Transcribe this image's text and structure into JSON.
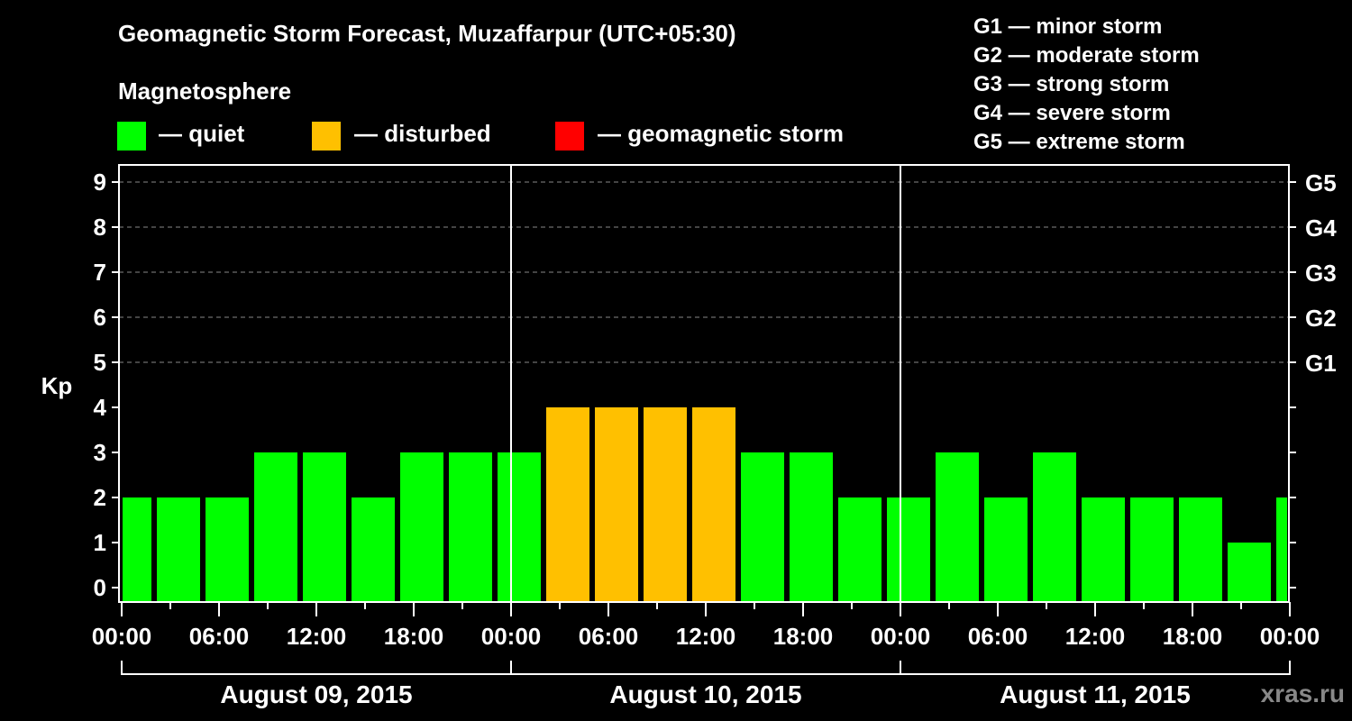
{
  "title": "Geomagnetic Storm Forecast, Muzaffarpur (UTC+05:30)",
  "legend": {
    "heading": "Magnetosphere",
    "items": [
      {
        "label": "— quiet",
        "color": "#00ff00"
      },
      {
        "label": "— disturbed",
        "color": "#ffc000"
      },
      {
        "label": "— geomagnetic storm",
        "color": "#ff0000"
      }
    ]
  },
  "g_scale": [
    "G1 — minor storm",
    "G2 — moderate storm",
    "G3 — strong storm",
    "G4 — severe storm",
    "G5 — extreme storm"
  ],
  "watermark": "xras.ru",
  "chart_data": {
    "type": "bar",
    "title": "Geomagnetic Storm Forecast, Muzaffarpur (UTC+05:30)",
    "ylabel": "Kp",
    "xlabel": "",
    "ylim": [
      0,
      9
    ],
    "yticks": [
      0,
      1,
      2,
      3,
      4,
      5,
      6,
      7,
      8,
      9
    ],
    "right_axis_labels": [
      {
        "kp": 5,
        "label": "G1"
      },
      {
        "kp": 6,
        "label": "G2"
      },
      {
        "kp": 7,
        "label": "G3"
      },
      {
        "kp": 8,
        "label": "G4"
      },
      {
        "kp": 9,
        "label": "G5"
      }
    ],
    "xtick_labels": [
      "00:00",
      "06:00",
      "12:00",
      "18:00",
      "00:00",
      "06:00",
      "12:00",
      "18:00",
      "00:00",
      "06:00",
      "12:00",
      "18:00",
      "00:00"
    ],
    "days": [
      "August 09, 2015",
      "August 10, 2015",
      "August 11, 2015"
    ],
    "grid": "dashed horizontal at Kp 5-9",
    "interval_hours": 3,
    "categories": [
      "Aug 09 00:00",
      "Aug 09 03:00",
      "Aug 09 06:00",
      "Aug 09 09:00",
      "Aug 09 12:00",
      "Aug 09 15:00",
      "Aug 09 18:00",
      "Aug 09 21:00",
      "Aug 10 00:00",
      "Aug 10 03:00",
      "Aug 10 06:00",
      "Aug 10 09:00",
      "Aug 10 12:00",
      "Aug 10 15:00",
      "Aug 10 18:00",
      "Aug 10 21:00",
      "Aug 11 00:00",
      "Aug 11 03:00",
      "Aug 11 06:00",
      "Aug 11 09:00",
      "Aug 11 12:00",
      "Aug 11 15:00",
      "Aug 11 18:00",
      "Aug 11 21:00",
      "Aug 12 00:00"
    ],
    "values": [
      2,
      2,
      2,
      3,
      3,
      2,
      3,
      3,
      3,
      4,
      4,
      4,
      4,
      3,
      3,
      2,
      2,
      3,
      2,
      3,
      2,
      2,
      2,
      1,
      2
    ],
    "colors": {
      "quiet": "#00ff00",
      "disturbed": "#ffc000",
      "storm": "#ff0000"
    }
  }
}
